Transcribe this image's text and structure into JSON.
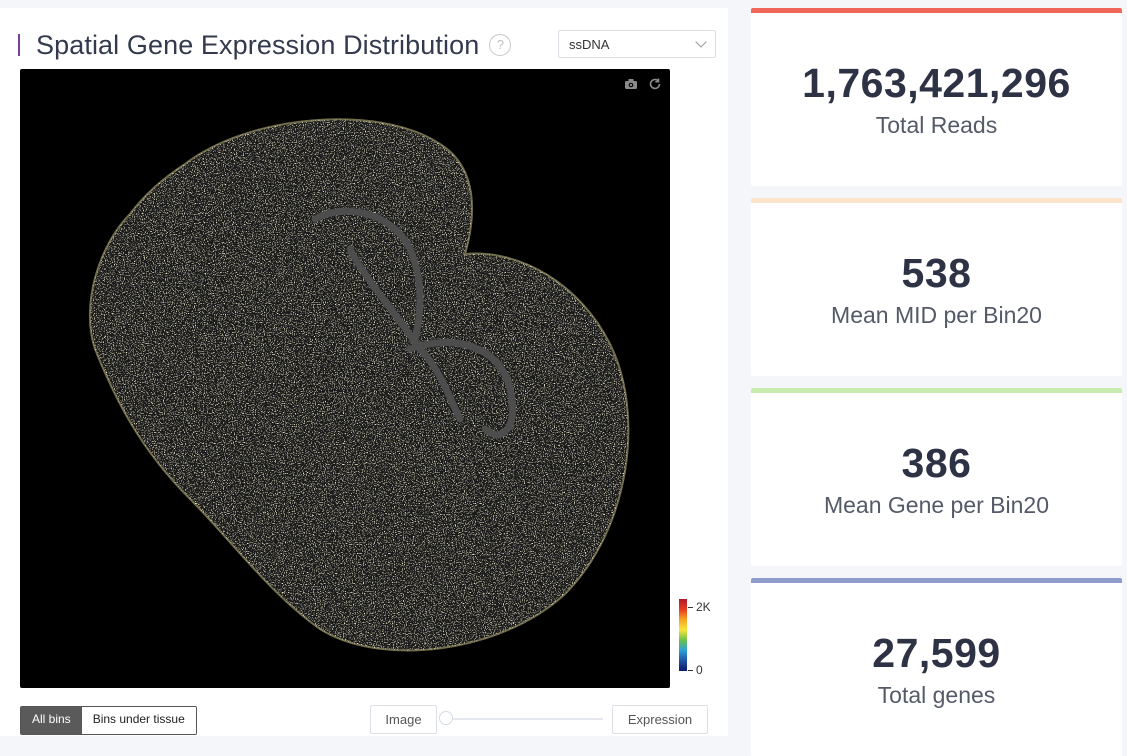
{
  "panel": {
    "title": "Spatial Gene Expression Distribution",
    "help": "?",
    "select_value": "ssDNA"
  },
  "colorbar": {
    "max_label": "2K",
    "min_label": "0"
  },
  "toggles": {
    "all_bins": "All bins",
    "bins_under_tissue": "Bins under tissue"
  },
  "blend": {
    "left_label": "Image",
    "right_label": "Expression",
    "value_percent": 0
  },
  "icons": [
    "camera-icon",
    "reset-icon",
    "question-circle-icon",
    "chevron-down-icon"
  ],
  "stats": [
    {
      "value": "1,763,421,296",
      "label": "Total Reads",
      "color": "#f0675a"
    },
    {
      "value": "538",
      "label": "Mean MID per Bin20",
      "color": "#fde2cc"
    },
    {
      "value": "386",
      "label": "Mean Gene per Bin20",
      "color": "#c9ecb0"
    },
    {
      "value": "27,599",
      "label": "Total genes",
      "color": "#8d9ccc"
    }
  ]
}
